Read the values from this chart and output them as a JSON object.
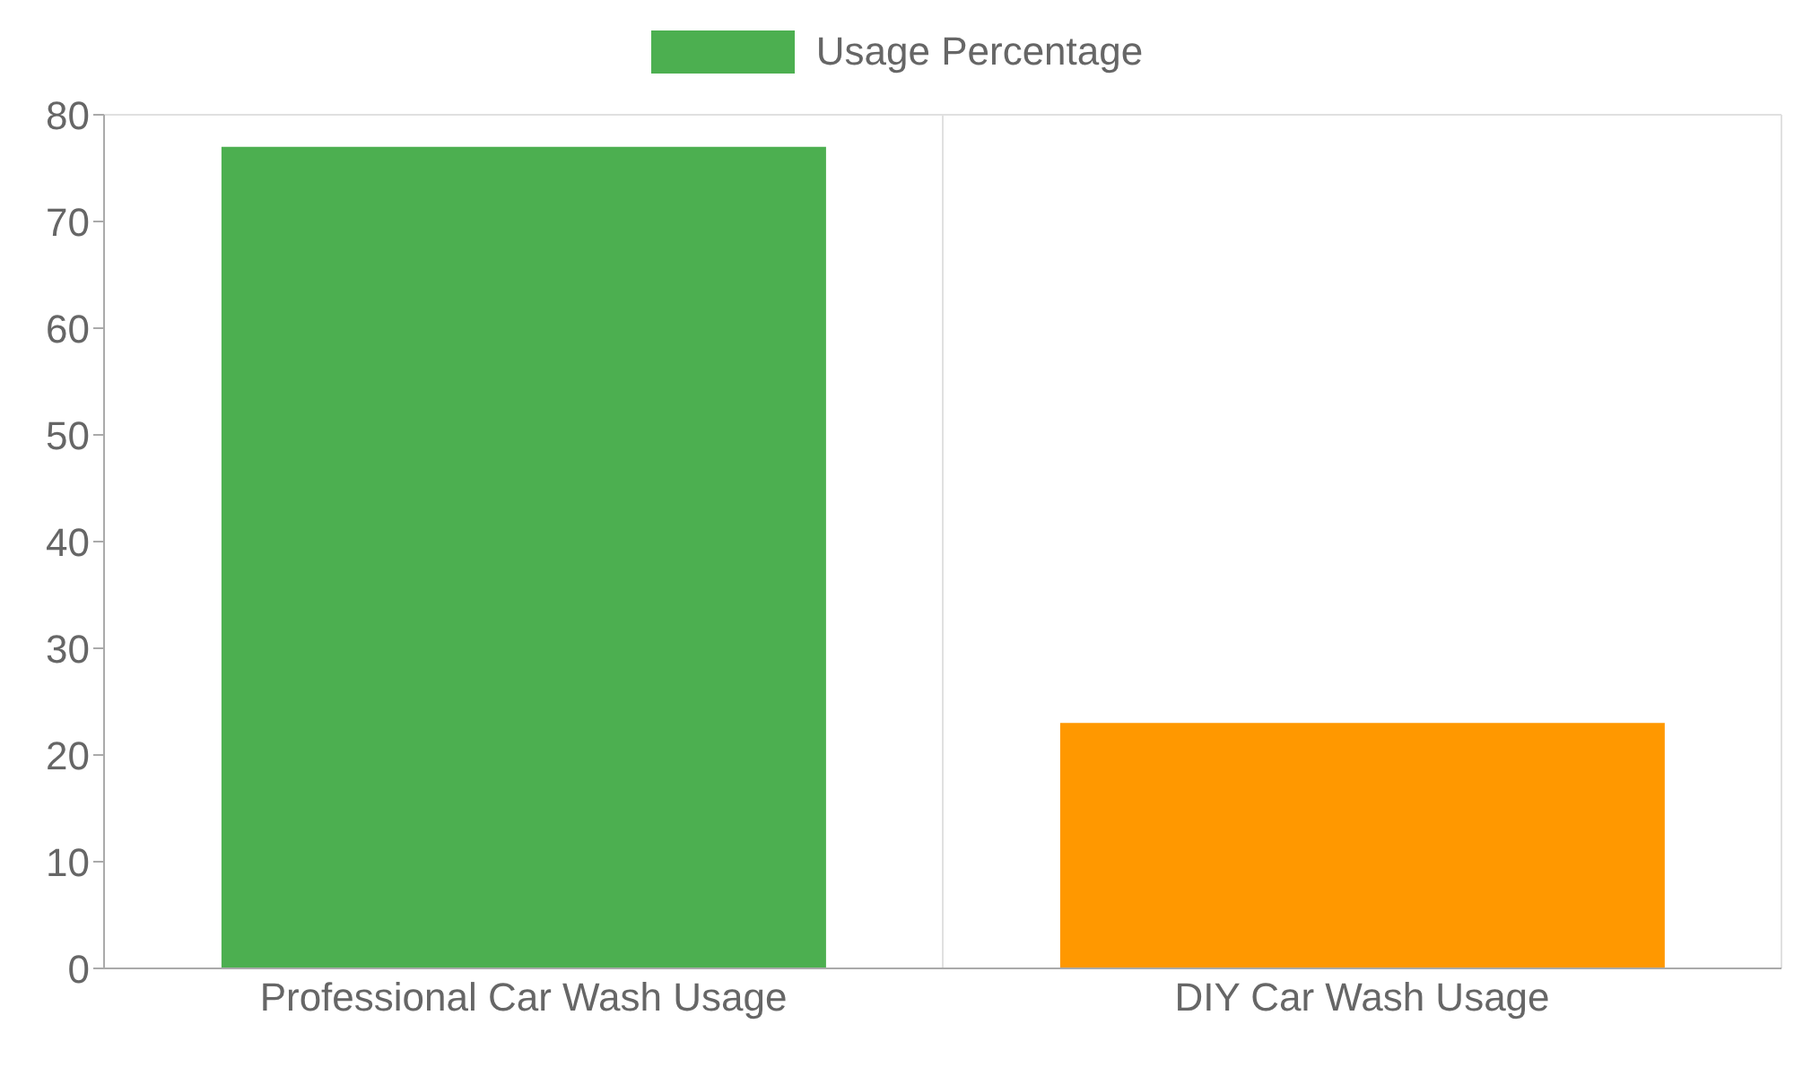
{
  "chart_data": {
    "type": "bar",
    "categories": [
      "Professional Car Wash Usage",
      "DIY Car Wash Usage"
    ],
    "series": [
      {
        "name": "Usage Percentage",
        "color": "#4caf50",
        "colors": [
          "#4caf50",
          "#ff9800"
        ],
        "values": [
          77,
          23
        ]
      }
    ],
    "ylim": [
      0,
      80
    ],
    "yticks": [
      0,
      10,
      20,
      30,
      40,
      50,
      60,
      70,
      80
    ],
    "grid": true,
    "legend": "top"
  }
}
